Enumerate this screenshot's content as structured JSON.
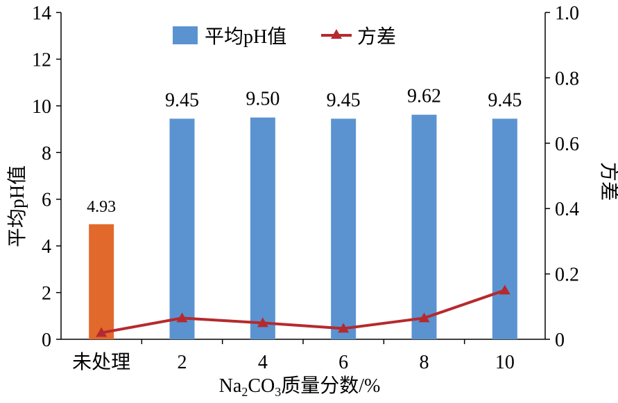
{
  "chart_data": {
    "type": "bar",
    "categories": [
      "未处理",
      "2",
      "4",
      "6",
      "8",
      "10"
    ],
    "xlabel": {
      "pre": "Na",
      "sub1": "2",
      "mid": "CO",
      "sub2": "3",
      "post": "质量分数/%"
    },
    "ylabel": "平均pH值",
    "y2label": "方差",
    "ylim": [
      0,
      14
    ],
    "y2lim": [
      0,
      1.0
    ],
    "yticks": [
      "0",
      "2",
      "4",
      "6",
      "8",
      "10",
      "12",
      "14"
    ],
    "y2ticks": [
      "0",
      "0.2",
      "0.4",
      "0.6",
      "0.8",
      "1.0"
    ],
    "series": [
      {
        "name": "平均pH值",
        "axis": "left",
        "type": "bar",
        "values": [
          4.93,
          9.45,
          9.5,
          9.45,
          9.62,
          9.45
        ],
        "labels": [
          "4.93",
          "9.45",
          "9.50",
          "9.45",
          "9.62",
          "9.45"
        ]
      },
      {
        "name": "方差",
        "axis": "right",
        "type": "line",
        "values": [
          0.02,
          0.065,
          0.05,
          0.033,
          0.065,
          0.15
        ]
      }
    ],
    "bar_colors": [
      "#E2692C",
      "#5B93D1",
      "#5B93D1",
      "#5B93D1",
      "#5B93D1",
      "#5B93D1"
    ],
    "bar_color": "#5B93D1",
    "line_color": "#B52A2E",
    "legend_position": "top-center",
    "grid": false
  }
}
